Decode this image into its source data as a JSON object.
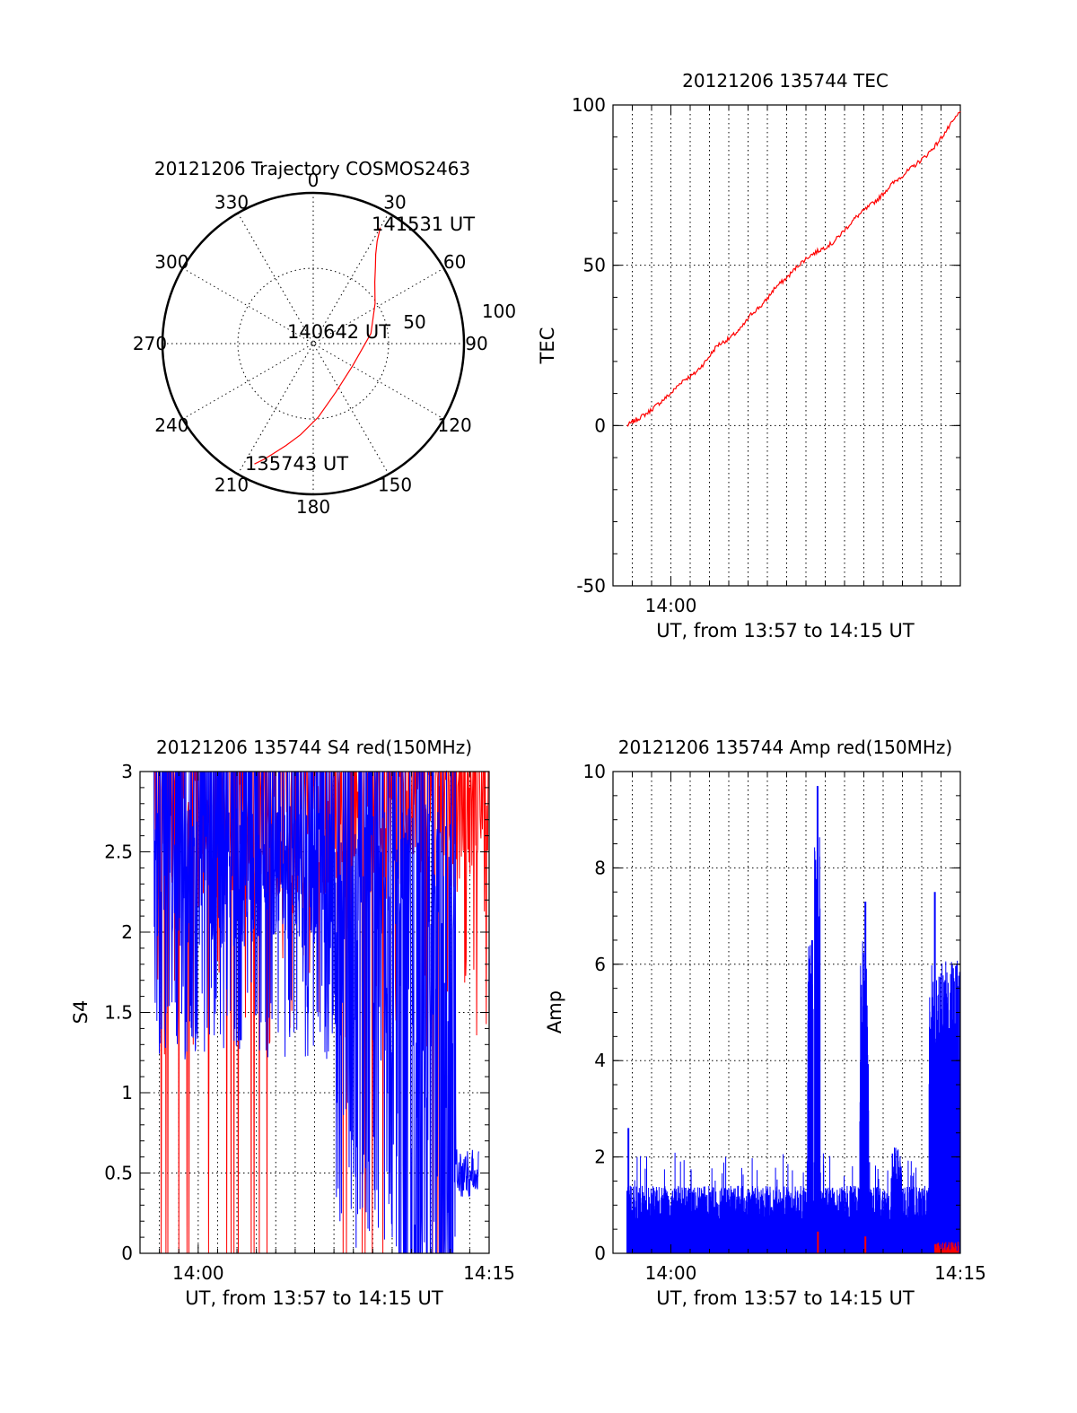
{
  "chart_data": [
    {
      "id": "polar",
      "type": "scatter",
      "title": "20121206 Trajectory COSMOS2463",
      "azimuth_labels": [
        "0",
        "30",
        "60",
        "90",
        "120",
        "150",
        "180",
        "210",
        "240",
        "270",
        "300",
        "330"
      ],
      "radial_labels": [
        "50",
        "100"
      ],
      "annotations": [
        "141531 UT",
        "140642 UT",
        "135743 UT"
      ],
      "series": [
        {
          "color": "#ff0000",
          "points": [
            [
              206,
              10
            ],
            [
              203,
              15
            ],
            [
              200,
              20
            ],
            [
              195,
              27
            ],
            [
              188,
              35
            ],
            [
              176,
              46
            ],
            [
              155,
              58
            ],
            [
              120,
              63
            ],
            [
              80,
              55
            ],
            [
              57,
              46
            ],
            [
              45,
              38
            ],
            [
              39,
              31
            ],
            [
              35,
              25
            ],
            [
              32,
              18
            ],
            [
              30,
              10
            ]
          ]
        }
      ]
    },
    {
      "id": "tec",
      "type": "line",
      "title": "20121206 135744 TEC",
      "xlabel": "UT, from 13:57 to 14:15 UT",
      "ylabel": "TEC",
      "xlim": [
        13.95,
        14.25
      ],
      "ylim": [
        -50,
        100
      ],
      "xticks": [
        {
          "v": 14.0,
          "label": "14:00"
        }
      ],
      "yticks": [
        {
          "v": -50,
          "label": "-50"
        },
        {
          "v": 0,
          "label": "0"
        },
        {
          "v": 50,
          "label": "50"
        },
        {
          "v": 100,
          "label": "100"
        }
      ],
      "series": [
        {
          "color": "#ff0000",
          "x": [
            13.9622,
            13.97,
            13.98,
            13.99,
            14.0,
            14.01,
            14.02,
            14.03,
            14.04,
            14.05,
            14.06,
            14.07,
            14.08,
            14.09,
            14.1,
            14.11,
            14.12,
            14.13,
            14.14,
            14.15,
            14.16,
            14.17,
            14.18,
            14.19,
            14.2,
            14.21,
            14.22,
            14.23,
            14.24,
            14.25
          ],
          "y": [
            0,
            1.8,
            4,
            7,
            10,
            14,
            16,
            20,
            25,
            27,
            30,
            35,
            38,
            43,
            46,
            50,
            53,
            55,
            57,
            61,
            65,
            68,
            71,
            75,
            78,
            81,
            84,
            88,
            93,
            98
          ]
        }
      ]
    },
    {
      "id": "s4",
      "type": "line",
      "title": "20121206 135744 S4 red(150MHz)",
      "xlabel": "UT, from 13:57 to 14:15 UT",
      "ylabel": "S4",
      "xlim": [
        13.95,
        14.25
      ],
      "ylim": [
        0,
        3
      ],
      "xticks": [
        {
          "v": 14.0,
          "label": "14:00"
        },
        {
          "v": 14.25,
          "label": "14:15"
        }
      ],
      "yticks": [
        {
          "v": 0,
          "label": "0"
        },
        {
          "v": 0.5,
          "label": "0.5"
        },
        {
          "v": 1,
          "label": "1"
        },
        {
          "v": 1.5,
          "label": "1.5"
        },
        {
          "v": 2,
          "label": "2"
        },
        {
          "v": 2.5,
          "label": "2.5"
        },
        {
          "v": 3,
          "label": "3"
        }
      ],
      "series": [
        {
          "color": "#ff0000",
          "name": "red"
        },
        {
          "color": "#0000ff",
          "name": "blue"
        }
      ]
    },
    {
      "id": "amp",
      "type": "line",
      "title": "20121206 135744 Amp red(150MHz)",
      "xlabel": "UT, from 13:57 to 14:15 UT",
      "ylabel": "Amp",
      "xlim": [
        13.95,
        14.25
      ],
      "ylim": [
        0,
        10
      ],
      "xticks": [
        {
          "v": 14.0,
          "label": "14:00"
        },
        {
          "v": 14.25,
          "label": "14:15"
        }
      ],
      "yticks": [
        {
          "v": 0,
          "label": "0"
        },
        {
          "v": 2,
          "label": "2"
        },
        {
          "v": 4,
          "label": "4"
        },
        {
          "v": 6,
          "label": "6"
        },
        {
          "v": 8,
          "label": "8"
        },
        {
          "v": 10,
          "label": "10"
        }
      ],
      "peaks": [
        {
          "x": 14.1267,
          "y": 9.7
        },
        {
          "x": 14.122,
          "y": 6.5
        },
        {
          "x": 14.168,
          "y": 7.3
        },
        {
          "x": 14.228,
          "y": 7.5
        },
        {
          "x": 13.9633,
          "y": 2.6
        }
      ],
      "series": [
        {
          "color": "#0000ff",
          "name": "blue"
        },
        {
          "color": "#ff0000",
          "name": "red"
        }
      ]
    }
  ]
}
